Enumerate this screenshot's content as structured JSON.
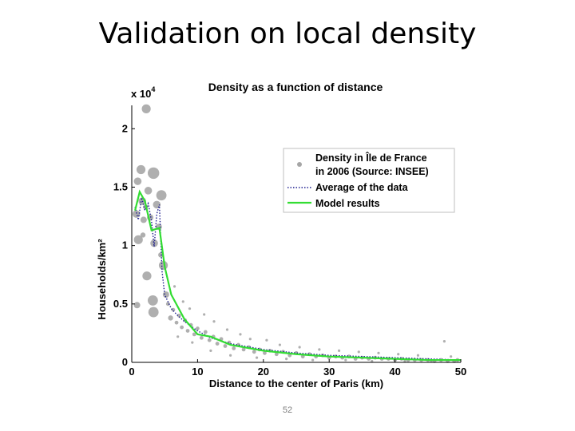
{
  "slide": {
    "title": "Validation on local density",
    "number": "52"
  },
  "chart_data": {
    "type": "scatter",
    "title": "Density as a function of distance",
    "xlabel": "Distance to the center of Paris (km)",
    "ylabel": "Households/km²",
    "y_multiplier": "x 10",
    "y_multiplier_exp": "4",
    "xlim": [
      0,
      50
    ],
    "ylim": [
      0,
      2.2
    ],
    "x_ticks": [
      0,
      10,
      20,
      30,
      40,
      50
    ],
    "x_tick_labels": [
      "0",
      "10",
      "20",
      "30",
      "40",
      "50"
    ],
    "y_ticks": [
      0,
      0.5,
      1,
      1.5,
      2
    ],
    "y_tick_labels": [
      "0",
      "0.5",
      "1",
      "1.5",
      "2"
    ],
    "grid": false,
    "legend_position": "upper-right",
    "series": [
      {
        "name": "Density in Île de France in 2006 (Source: INSEE)",
        "kind": "scatter",
        "color": "#a6a6a6",
        "points": [
          [
            2.2,
            2.17,
            7
          ],
          [
            1.4,
            1.65,
            7
          ],
          [
            3.3,
            1.62,
            9
          ],
          [
            0.9,
            1.55,
            6
          ],
          [
            2.5,
            1.47,
            6
          ],
          [
            4.5,
            1.43,
            8
          ],
          [
            1.6,
            1.38,
            6
          ],
          [
            3.8,
            1.35,
            6
          ],
          [
            0.7,
            1.27,
            6
          ],
          [
            2.8,
            1.24,
            5
          ],
          [
            1.8,
            1.22,
            5
          ],
          [
            4.1,
            1.16,
            5
          ],
          [
            1.0,
            1.05,
            7
          ],
          [
            3.4,
            1.02,
            6
          ],
          [
            4.8,
            0.83,
            7
          ],
          [
            2.3,
            0.74,
            7
          ],
          [
            5.2,
            0.58,
            5
          ],
          [
            3.2,
            0.53,
            8
          ],
          [
            3.3,
            0.43,
            8
          ],
          [
            0.8,
            0.49,
            5
          ],
          [
            1.7,
            1.09,
            4
          ],
          [
            2.1,
            1.33,
            4
          ],
          [
            4.4,
            0.92,
            4
          ],
          [
            5.5,
            0.5,
            3
          ],
          [
            5.9,
            0.38,
            4
          ],
          [
            6.3,
            0.45,
            3
          ],
          [
            6.8,
            0.34,
            3
          ],
          [
            7.2,
            0.4,
            3
          ],
          [
            7.6,
            0.3,
            3
          ],
          [
            8.1,
            0.36,
            3
          ],
          [
            8.5,
            0.27,
            3
          ],
          [
            9.0,
            0.32,
            3
          ],
          [
            9.5,
            0.24,
            3
          ],
          [
            10.0,
            0.29,
            3
          ],
          [
            10.6,
            0.21,
            3
          ],
          [
            11.2,
            0.26,
            3
          ],
          [
            11.8,
            0.19,
            3
          ],
          [
            12.4,
            0.22,
            3
          ],
          [
            13.0,
            0.16,
            3
          ],
          [
            13.6,
            0.2,
            3
          ],
          [
            14.2,
            0.14,
            3
          ],
          [
            14.8,
            0.17,
            3
          ],
          [
            15.5,
            0.12,
            3
          ],
          [
            16.2,
            0.15,
            3
          ],
          [
            17.0,
            0.11,
            3
          ],
          [
            17.8,
            0.13,
            3
          ],
          [
            18.6,
            0.09,
            3
          ],
          [
            19.4,
            0.11,
            3
          ],
          [
            20.2,
            0.08,
            3
          ],
          [
            21.0,
            0.1,
            3
          ],
          [
            22.0,
            0.07,
            3
          ],
          [
            23.0,
            0.09,
            3
          ],
          [
            24.0,
            0.06,
            3
          ],
          [
            25.0,
            0.08,
            3
          ],
          [
            26.0,
            0.05,
            3
          ],
          [
            27.0,
            0.07,
            3
          ],
          [
            28.0,
            0.05,
            3
          ],
          [
            29.0,
            0.06,
            3
          ],
          [
            30.0,
            0.04,
            3
          ],
          [
            31.0,
            0.05,
            3
          ],
          [
            32.0,
            0.04,
            3
          ],
          [
            33.0,
            0.05,
            3
          ],
          [
            34.0,
            0.03,
            3
          ],
          [
            35.0,
            0.04,
            3
          ],
          [
            36.0,
            0.03,
            3
          ],
          [
            37.0,
            0.04,
            3
          ],
          [
            38.0,
            0.03,
            3
          ],
          [
            39.0,
            0.03,
            3
          ],
          [
            40.0,
            0.02,
            3
          ],
          [
            41.0,
            0.03,
            3
          ],
          [
            42.0,
            0.02,
            3
          ],
          [
            43.0,
            0.02,
            3
          ],
          [
            44.0,
            0.02,
            3
          ],
          [
            45.0,
            0.02,
            3
          ],
          [
            46.0,
            0.01,
            3
          ],
          [
            47.0,
            0.02,
            3
          ],
          [
            48.0,
            0.01,
            3
          ],
          [
            49.0,
            0.01,
            3
          ],
          [
            49.5,
            0.02,
            3
          ],
          [
            6.5,
            0.65,
            2
          ],
          [
            7.8,
            0.52,
            2
          ],
          [
            8.8,
            0.46,
            2
          ],
          [
            11.0,
            0.41,
            2
          ],
          [
            12.5,
            0.35,
            2
          ],
          [
            14.5,
            0.28,
            2
          ],
          [
            16.5,
            0.24,
            2
          ],
          [
            18.0,
            0.2,
            2
          ],
          [
            20.5,
            0.19,
            2
          ],
          [
            22.5,
            0.15,
            2
          ],
          [
            25.5,
            0.13,
            2
          ],
          [
            28.5,
            0.11,
            2
          ],
          [
            31.5,
            0.1,
            2
          ],
          [
            34.5,
            0.09,
            2
          ],
          [
            37.5,
            0.08,
            2
          ],
          [
            40.5,
            0.07,
            2
          ],
          [
            43.5,
            0.06,
            2
          ],
          [
            47.5,
            0.18,
            2
          ],
          [
            7.0,
            0.22,
            2
          ],
          [
            9.2,
            0.17,
            2
          ],
          [
            12.0,
            0.1,
            2
          ],
          [
            15.0,
            0.06,
            2
          ],
          [
            19.0,
            0.04,
            2
          ],
          [
            23.5,
            0.03,
            2
          ],
          [
            27.5,
            0.02,
            2
          ],
          [
            32.5,
            0.02,
            2
          ],
          [
            36.5,
            0.01,
            2
          ],
          [
            41.5,
            0.01,
            2
          ],
          [
            45.5,
            0.01,
            2
          ],
          [
            48.5,
            0.05,
            2
          ]
        ]
      },
      {
        "name": "Average of the data",
        "kind": "line",
        "style": "dotted",
        "color": "#1f1f8f",
        "points": [
          [
            0.5,
            1.33
          ],
          [
            1.0,
            1.22
          ],
          [
            1.5,
            1.41
          ],
          [
            2.0,
            1.3
          ],
          [
            2.5,
            1.36
          ],
          [
            3.0,
            1.21
          ],
          [
            3.4,
            0.99
          ],
          [
            3.8,
            1.27
          ],
          [
            4.2,
            1.35
          ],
          [
            4.6,
            0.78
          ],
          [
            5.0,
            0.58
          ],
          [
            5.5,
            0.52
          ],
          [
            6.0,
            0.46
          ],
          [
            7.0,
            0.4
          ],
          [
            8.0,
            0.35
          ],
          [
            10.0,
            0.27
          ],
          [
            12.0,
            0.21
          ],
          [
            15.0,
            0.16
          ],
          [
            20.0,
            0.11
          ],
          [
            25.0,
            0.08
          ],
          [
            30.0,
            0.06
          ],
          [
            35.0,
            0.05
          ],
          [
            40.0,
            0.04
          ],
          [
            45.0,
            0.03
          ],
          [
            50.0,
            0.02
          ]
        ]
      },
      {
        "name": "Model results",
        "kind": "line",
        "style": "solid",
        "color": "#33dd33",
        "points": [
          [
            0.5,
            1.3
          ],
          [
            1.2,
            1.46
          ],
          [
            2.0,
            1.38
          ],
          [
            3.0,
            1.13
          ],
          [
            4.2,
            1.15
          ],
          [
            5.0,
            0.82
          ],
          [
            6.0,
            0.58
          ],
          [
            8.0,
            0.37
          ],
          [
            10.0,
            0.24
          ],
          [
            12.0,
            0.22
          ],
          [
            15.0,
            0.15
          ],
          [
            20.0,
            0.1
          ],
          [
            25.0,
            0.07
          ],
          [
            30.0,
            0.05
          ],
          [
            35.0,
            0.04
          ],
          [
            40.0,
            0.03
          ],
          [
            45.0,
            0.02
          ],
          [
            50.0,
            0.02
          ]
        ]
      }
    ],
    "legend": {
      "scatter_label_line1": "Density in Île de France",
      "scatter_label_line2": "in 2006 (Source: INSEE)",
      "average_label": "Average of the data",
      "model_label": "Model results"
    }
  }
}
